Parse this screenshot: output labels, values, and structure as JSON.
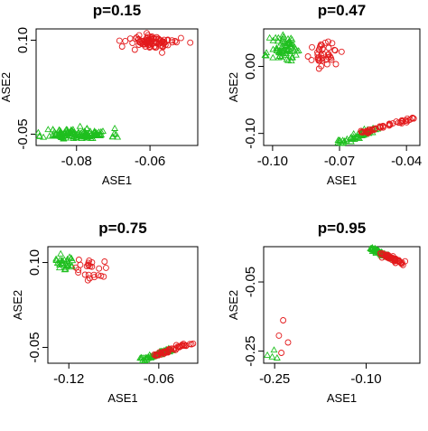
{
  "chart_data": [
    {
      "type": "scatter",
      "title": "p=0.15",
      "xlabel": "ASE1",
      "ylabel": "ASE2",
      "xlim": [
        -0.091,
        -0.047
      ],
      "ylim": [
        -0.068,
        0.118
      ],
      "xticks": [
        -0.08,
        -0.06
      ],
      "xtick_labels": [
        "-0.08",
        "-0.06"
      ],
      "yticks": [
        -0.05,
        0.1
      ],
      "ytick_labels": [
        "-0.05",
        "0.10"
      ],
      "series": [
        {
          "marker": "triangle",
          "color": "#1fbf1f",
          "clusters": [
            {
              "n": 130,
              "cx": -0.08,
              "cy": -0.05,
              "sx": 0.0045,
              "sy": 0.0045,
              "seed": 11
            }
          ]
        },
        {
          "marker": "circle",
          "color": "#e31a1c",
          "clusters": [
            {
              "n": 90,
              "cx": -0.059,
              "cy": 0.097,
              "sx": 0.0035,
              "sy": 0.0055,
              "seed": 12
            }
          ]
        }
      ]
    },
    {
      "type": "scatter",
      "title": "p=0.47",
      "xlabel": "ASE1",
      "ylabel": "ASE2",
      "xlim": [
        -0.104,
        -0.034
      ],
      "ylim": [
        -0.118,
        0.056
      ],
      "xticks": [
        -0.1,
        -0.07,
        -0.04
      ],
      "xtick_labels": [
        "-0.10",
        "-0.07",
        "-0.04"
      ],
      "yticks": [
        0.0,
        -0.1
      ],
      "ytick_labels": [
        "0.00",
        "-0.10"
      ],
      "series": [
        {
          "marker": "triangle",
          "color": "#1fbf1f",
          "clusters": [
            {
              "n": 70,
              "cx": -0.094,
              "cy": 0.025,
              "sx": 0.0035,
              "sy": 0.01,
              "seed": 21
            }
          ],
          "lines": [
            {
              "n": 50,
              "x0": -0.069,
              "y0": -0.114,
              "x1": -0.055,
              "y1": -0.094,
              "jitter": 0.0012,
              "seed": 22
            }
          ]
        },
        {
          "marker": "circle",
          "color": "#e31a1c",
          "clusters": [
            {
              "n": 40,
              "cx": -0.076,
              "cy": 0.017,
              "sx": 0.003,
              "sy": 0.008,
              "seed": 23
            }
          ],
          "lines": [
            {
              "n": 45,
              "x0": -0.06,
              "y0": -0.099,
              "x1": -0.037,
              "y1": -0.077,
              "jitter": 0.0012,
              "seed": 24
            }
          ]
        }
      ]
    },
    {
      "type": "scatter",
      "title": "p=0.75",
      "xlabel": "ASE1",
      "ylabel": "ASE2",
      "xlim": [
        -0.134,
        -0.034
      ],
      "ylim": [
        -0.078,
        0.128
      ],
      "xticks": [
        -0.12,
        -0.06
      ],
      "xtick_labels": [
        "-0.12",
        "-0.06"
      ],
      "yticks": [
        0.1,
        -0.05
      ],
      "ytick_labels": [
        "0.10",
        "-0.05"
      ],
      "series": [
        {
          "marker": "triangle",
          "color": "#1fbf1f",
          "clusters": [
            {
              "n": 30,
              "cx": -0.124,
              "cy": 0.1,
              "sx": 0.004,
              "sy": 0.007,
              "seed": 31
            }
          ],
          "lines": [
            {
              "n": 55,
              "x0": -0.071,
              "y0": -0.072,
              "x1": -0.053,
              "y1": -0.054,
              "jitter": 0.0015,
              "seed": 32
            }
          ]
        },
        {
          "marker": "circle",
          "color": "#e31a1c",
          "clusters": [
            {
              "n": 25,
              "cx": -0.106,
              "cy": 0.086,
              "sx": 0.005,
              "sy": 0.01,
              "seed": 33
            }
          ],
          "lines": [
            {
              "n": 45,
              "x0": -0.063,
              "y0": -0.065,
              "x1": -0.039,
              "y1": -0.043,
              "jitter": 0.0015,
              "seed": 34
            }
          ]
        }
      ]
    },
    {
      "type": "scatter",
      "title": "p=0.95",
      "xlabel": "ASE1",
      "ylabel": "ASE2",
      "xlim": [
        -0.268,
        -0.012
      ],
      "ylim": [
        -0.285,
        0.052
      ],
      "xticks": [
        -0.25,
        -0.1
      ],
      "xtick_labels": [
        "-0.25",
        "-0.10"
      ],
      "yticks": [
        -0.05,
        -0.25
      ],
      "ytick_labels": [
        "-0.05",
        "-0.25"
      ],
      "series": [
        {
          "marker": "triangle",
          "color": "#1fbf1f",
          "points": [
            [
              -0.262,
              -0.262
            ],
            [
              -0.251,
              -0.247
            ],
            [
              -0.254,
              -0.267
            ],
            [
              -0.246,
              -0.27
            ]
          ],
          "lines": [
            {
              "n": 55,
              "x0": -0.093,
              "y0": 0.048,
              "x1": -0.06,
              "y1": 0.02,
              "jitter": 0.0025,
              "seed": 42
            }
          ]
        },
        {
          "marker": "circle",
          "color": "#e31a1c",
          "points": [
            [
              -0.236,
              -0.161
            ],
            [
              -0.243,
              -0.205
            ],
            [
              -0.228,
              -0.225
            ],
            [
              -0.239,
              -0.255
            ]
          ],
          "lines": [
            {
              "n": 50,
              "x0": -0.075,
              "y0": 0.032,
              "x1": -0.04,
              "y1": 0.003,
              "jitter": 0.0025,
              "seed": 43
            }
          ]
        }
      ]
    }
  ]
}
